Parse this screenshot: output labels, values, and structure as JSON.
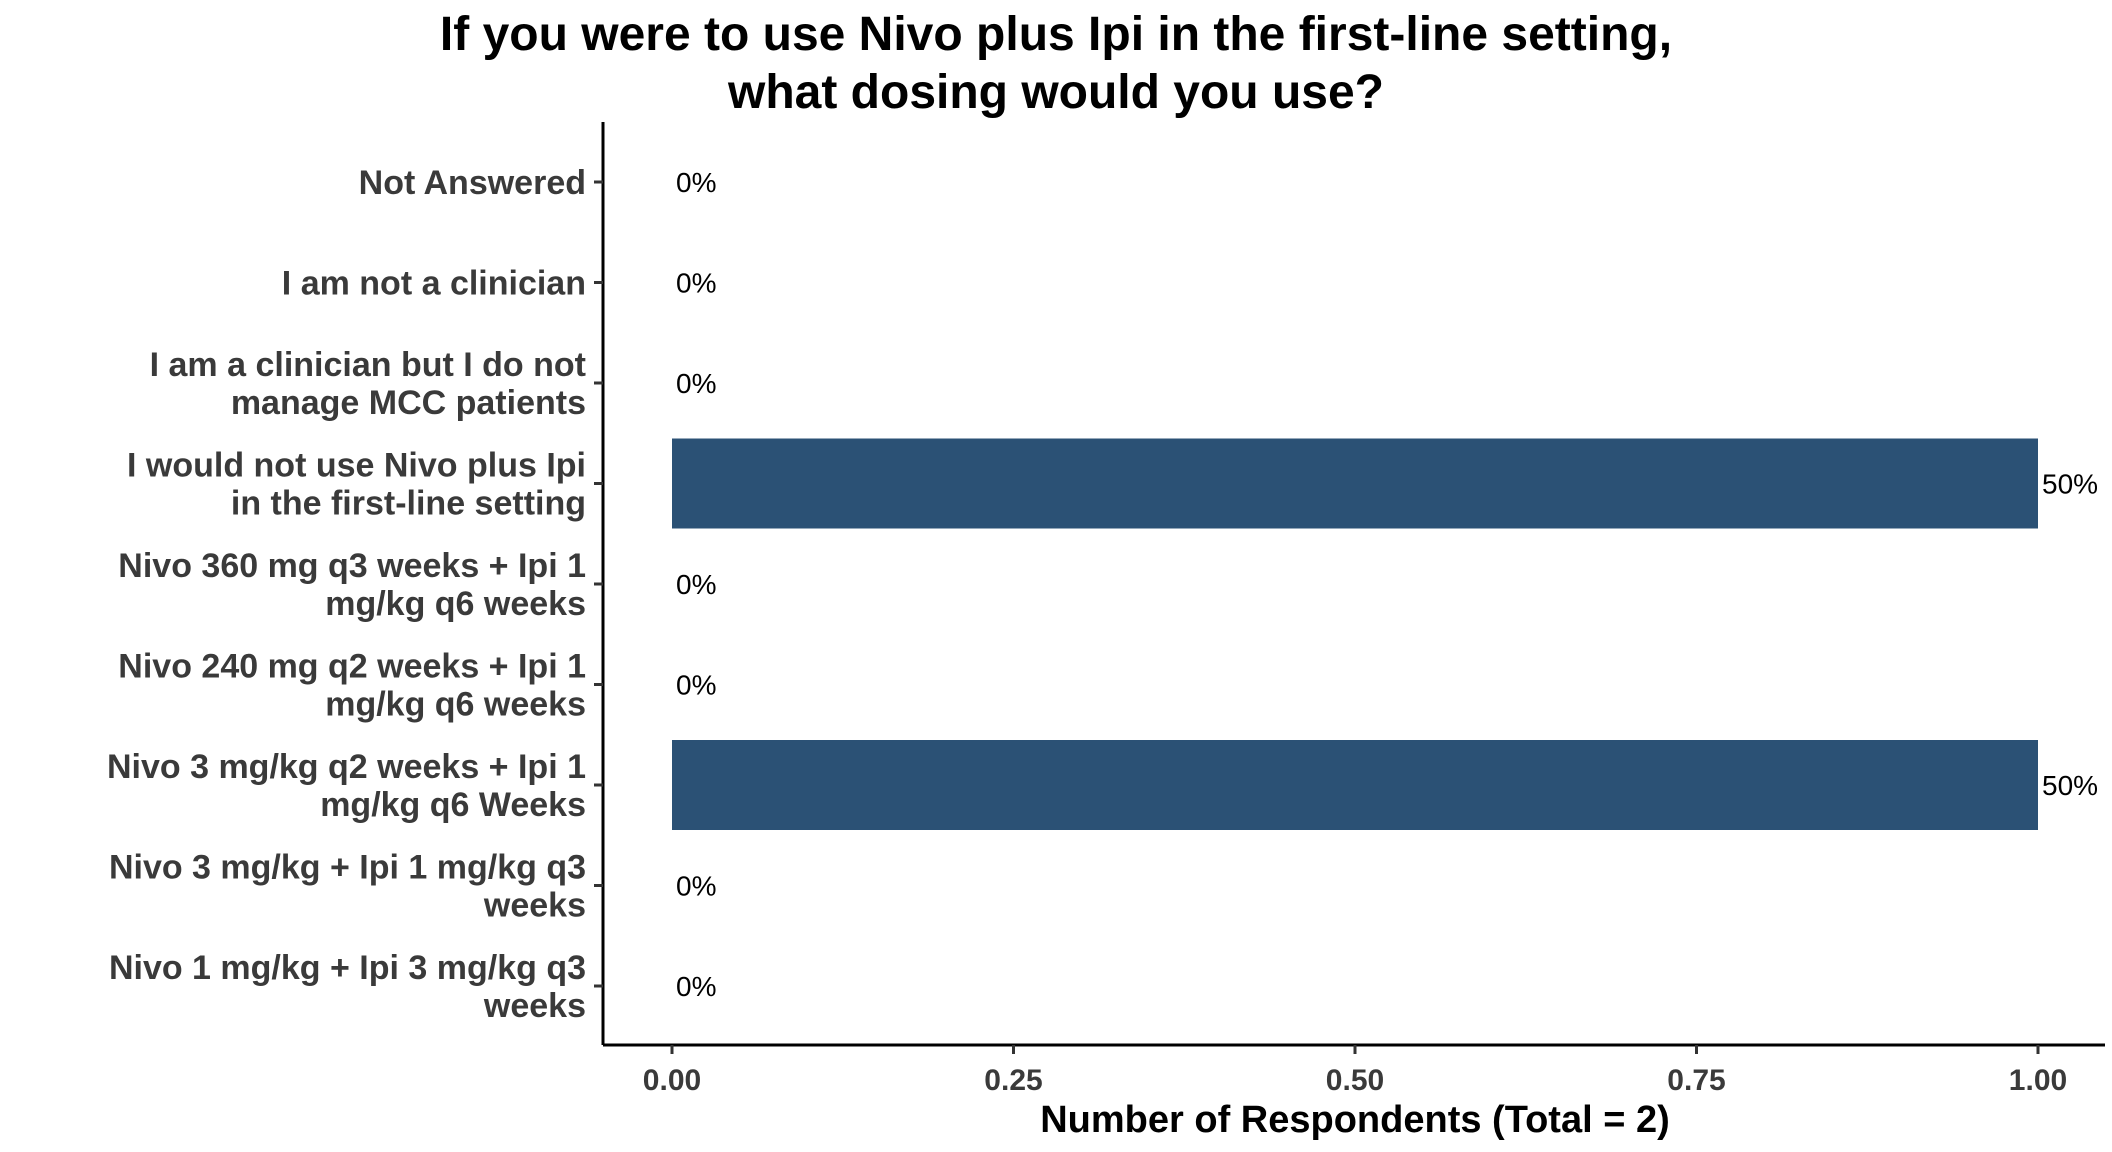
{
  "chart_data": {
    "type": "bar",
    "orientation": "horizontal",
    "title": "If you were to use Nivo plus Ipi in the first-line setting, what dosing would you use?",
    "xlabel": "Number of Respondents (Total = 2)",
    "ylabel": "",
    "xlim": [
      0,
      1
    ],
    "xticks": [
      "0.00",
      "0.25",
      "0.50",
      "0.75",
      "1.00"
    ],
    "categories": [
      "Not Answered",
      "I am not a clinician",
      "I am a clinician but I do not manage MCC patients",
      "I would not use Nivo plus Ipi in the first-line setting",
      "Nivo 360 mg q3 weeks + Ipi 1 mg/kg q6 weeks",
      "Nivo 240 mg q2 weeks + Ipi 1 mg/kg q6 weeks",
      "Nivo 3 mg/kg q2 weeks + Ipi 1 mg/kg q6 Weeks",
      "Nivo 3 mg/kg + Ipi 1 mg/kg q3 weeks",
      "Nivo 1 mg/kg + Ipi 3 mg/kg q3 weeks"
    ],
    "category_lines": [
      [
        "Not Answered"
      ],
      [
        "I am not a clinician"
      ],
      [
        "I am a clinician but I do not",
        "manage MCC patients"
      ],
      [
        "I would not use Nivo plus Ipi",
        "in the first-line setting"
      ],
      [
        "Nivo 360 mg q3 weeks + Ipi 1",
        "mg/kg q6 weeks"
      ],
      [
        "Nivo 240 mg q2 weeks + Ipi 1",
        "mg/kg q6 weeks"
      ],
      [
        "Nivo 3 mg/kg q2 weeks + Ipi 1",
        "mg/kg q6 Weeks"
      ],
      [
        "Nivo 3 mg/kg + Ipi 1 mg/kg q3",
        "weeks"
      ],
      [
        "Nivo 1 mg/kg + Ipi 3 mg/kg q3",
        "weeks"
      ]
    ],
    "values": [
      0,
      0,
      0,
      1,
      0,
      0,
      1,
      0,
      0
    ],
    "labels": [
      "0%",
      "0%",
      "0%",
      "50%",
      "0%",
      "0%",
      "50%",
      "0%",
      "0%"
    ],
    "bar_color": "#2b5175",
    "grid": false,
    "legend": "none"
  }
}
